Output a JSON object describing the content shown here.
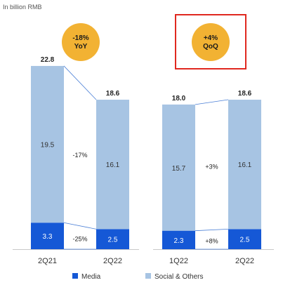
{
  "unit_label": "In billion RMB",
  "colors": {
    "media": "#1558d6",
    "social_others": "#a7c4e3",
    "badge": "#f2b233",
    "highlight_border": "#e0281f",
    "connector": "#4a7fd6",
    "axis": "#c8c8c8"
  },
  "badges": [
    {
      "line1": "-18%",
      "line2": "YoY"
    },
    {
      "line1": "+4%",
      "line2": "QoQ"
    }
  ],
  "chart_data": [
    {
      "type": "bar",
      "stacked": true,
      "categories": [
        "2Q21",
        "2Q22"
      ],
      "series": [
        {
          "name": "Media",
          "values": [
            3.3,
            2.5
          ]
        },
        {
          "name": "Social & Others",
          "values": [
            19.5,
            16.1
          ]
        }
      ],
      "totals": [
        22.8,
        18.6
      ],
      "changes": {
        "social_others": "-17%",
        "media": "-25%"
      },
      "comparison": "YoY",
      "ylim": [
        0,
        24
      ]
    },
    {
      "type": "bar",
      "stacked": true,
      "categories": [
        "1Q22",
        "2Q22"
      ],
      "series": [
        {
          "name": "Media",
          "values": [
            2.3,
            2.5
          ]
        },
        {
          "name": "Social & Others",
          "values": [
            15.7,
            16.1
          ]
        }
      ],
      "totals": [
        18.0,
        18.6
      ],
      "changes": {
        "social_others": "+3%",
        "media": "+8%"
      },
      "comparison": "QoQ",
      "ylim": [
        0,
        24
      ]
    }
  ],
  "legend": [
    {
      "label": "Media",
      "series": "media"
    },
    {
      "label": "Social & Others",
      "series": "social_others"
    }
  ]
}
